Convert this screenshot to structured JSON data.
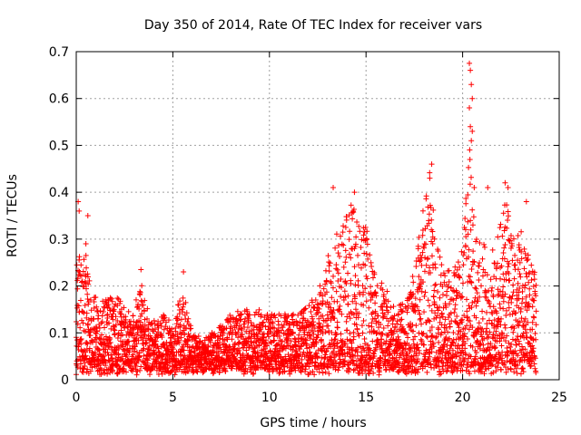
{
  "chart_data": {
    "type": "scatter",
    "title": "Day 350 of 2014, Rate Of TEC Index for receiver vars",
    "xlabel": "GPS time / hours",
    "ylabel": "ROTI / TECUs",
    "xlim": [
      0,
      25
    ],
    "ylim": [
      0,
      0.7
    ],
    "x_ticks": [
      "0",
      "5",
      "10",
      "15",
      "20",
      "25"
    ],
    "y_ticks": [
      "0",
      "0.1",
      "0.2",
      "0.3",
      "0.4",
      "0.5",
      "0.6",
      "0.7"
    ],
    "grid": true,
    "marker": "+",
    "color": "#ff0000",
    "envelope": [
      [
        0.0,
        0.26
      ],
      [
        0.1,
        0.37
      ],
      [
        0.3,
        0.22
      ],
      [
        0.5,
        0.31
      ],
      [
        0.7,
        0.2
      ],
      [
        1.0,
        0.18
      ],
      [
        1.5,
        0.17
      ],
      [
        2.0,
        0.18
      ],
      [
        2.5,
        0.17
      ],
      [
        3.0,
        0.16
      ],
      [
        3.4,
        0.22
      ],
      [
        3.8,
        0.14
      ],
      [
        4.2,
        0.13
      ],
      [
        4.6,
        0.15
      ],
      [
        5.0,
        0.11
      ],
      [
        5.5,
        0.21
      ],
      [
        6.0,
        0.1
      ],
      [
        6.5,
        0.09
      ],
      [
        7.0,
        0.1
      ],
      [
        7.5,
        0.12
      ],
      [
        8.0,
        0.14
      ],
      [
        8.5,
        0.15
      ],
      [
        9.0,
        0.15
      ],
      [
        9.5,
        0.15
      ],
      [
        10.0,
        0.14
      ],
      [
        10.5,
        0.14
      ],
      [
        11.0,
        0.15
      ],
      [
        11.5,
        0.14
      ],
      [
        12.0,
        0.16
      ],
      [
        12.5,
        0.19
      ],
      [
        13.0,
        0.26
      ],
      [
        13.5,
        0.32
      ],
      [
        14.0,
        0.35
      ],
      [
        14.3,
        0.38
      ],
      [
        14.7,
        0.32
      ],
      [
        15.0,
        0.33
      ],
      [
        15.5,
        0.22
      ],
      [
        16.0,
        0.2
      ],
      [
        16.5,
        0.15
      ],
      [
        17.0,
        0.17
      ],
      [
        17.5,
        0.24
      ],
      [
        18.0,
        0.38
      ],
      [
        18.3,
        0.45
      ],
      [
        18.7,
        0.3
      ],
      [
        19.0,
        0.25
      ],
      [
        19.5,
        0.24
      ],
      [
        20.0,
        0.28
      ],
      [
        20.3,
        0.55
      ],
      [
        20.6,
        0.33
      ],
      [
        21.0,
        0.3
      ],
      [
        21.5,
        0.27
      ],
      [
        22.0,
        0.37
      ],
      [
        22.3,
        0.4
      ],
      [
        22.7,
        0.3
      ],
      [
        23.0,
        0.32
      ],
      [
        23.3,
        0.28
      ],
      [
        23.6,
        0.26
      ],
      [
        23.8,
        0.25
      ]
    ],
    "outliers": [
      [
        0.1,
        0.38
      ],
      [
        0.15,
        0.36
      ],
      [
        0.5,
        0.29
      ],
      [
        0.6,
        0.35
      ],
      [
        3.35,
        0.235
      ],
      [
        5.55,
        0.23
      ],
      [
        13.3,
        0.41
      ],
      [
        14.4,
        0.4
      ],
      [
        18.4,
        0.46
      ],
      [
        18.3,
        0.43
      ],
      [
        20.35,
        0.675
      ],
      [
        20.4,
        0.66
      ],
      [
        20.45,
        0.63
      ],
      [
        20.5,
        0.6
      ],
      [
        20.35,
        0.58
      ],
      [
        20.4,
        0.54
      ],
      [
        20.5,
        0.53
      ],
      [
        20.45,
        0.51
      ],
      [
        20.6,
        0.41
      ],
      [
        21.3,
        0.41
      ],
      [
        22.2,
        0.42
      ],
      [
        22.35,
        0.41
      ],
      [
        23.3,
        0.38
      ]
    ]
  }
}
